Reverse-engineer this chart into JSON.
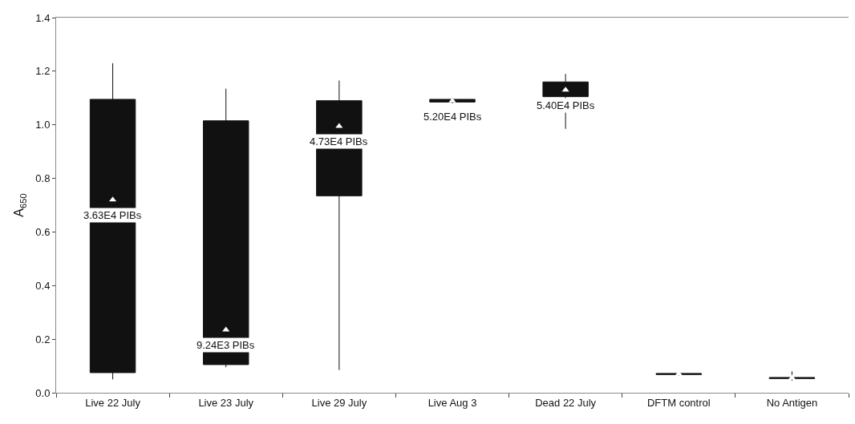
{
  "chart_data": {
    "type": "box",
    "ylabel": "A$_{650}$",
    "categories": [
      "Live 22 July",
      "Live 23 July",
      "Live 29 July",
      "Live Aug 3",
      "Dead 22 July",
      "DFTM control",
      "No Antigen"
    ],
    "boxes": [
      {
        "low": 0.05,
        "q1": 0.075,
        "median": 0.72,
        "q3": 1.095,
        "high": 1.23,
        "mean": 0.72
      },
      {
        "low": 0.095,
        "q1": 0.105,
        "median": 0.23,
        "q3": 1.015,
        "high": 1.135,
        "mean": 0.235
      },
      {
        "low": 0.085,
        "q1": 0.735,
        "median": 0.99,
        "q3": 1.09,
        "high": 1.165,
        "mean": 0.995
      },
      {
        "low": 1.08,
        "q1": 1.085,
        "median": 1.09,
        "q3": 1.095,
        "high": 1.1,
        "mean": 1.09
      },
      {
        "low": 0.985,
        "q1": 1.105,
        "median": 1.13,
        "q3": 1.16,
        "high": 1.19,
        "mean": 1.13
      },
      {
        "low": 0.063,
        "q1": 0.068,
        "median": 0.07,
        "q3": 0.072,
        "high": 0.077,
        "mean": 0.07
      },
      {
        "low": 0.045,
        "q1": 0.053,
        "median": 0.055,
        "q3": 0.057,
        "high": 0.08,
        "mean": 0.055
      }
    ],
    "color": "#111111",
    "marker": "triangle",
    "ylim": [
      0,
      1.4
    ],
    "yticks": [
      {
        "value": 0,
        "label": "0.0"
      },
      {
        "value": 0.2,
        "label": "0.2"
      },
      {
        "value": 0.4,
        "label": "0.4"
      },
      {
        "value": 0.6,
        "label": "0.6"
      },
      {
        "value": 0.8,
        "label": "0.8"
      },
      {
        "value": 1,
        "label": "1.0"
      },
      {
        "value": 1.2,
        "label": "1.2"
      },
      {
        "value": 1.4,
        "label": "1.4"
      }
    ],
    "grid": false,
    "annotations": [
      "3.63E4 PIBs",
      "9.24E3 PIBs",
      "4.73E4 PIBs",
      "5.20E4 PIBs",
      "5.40E4 PIBs"
    ]
  }
}
